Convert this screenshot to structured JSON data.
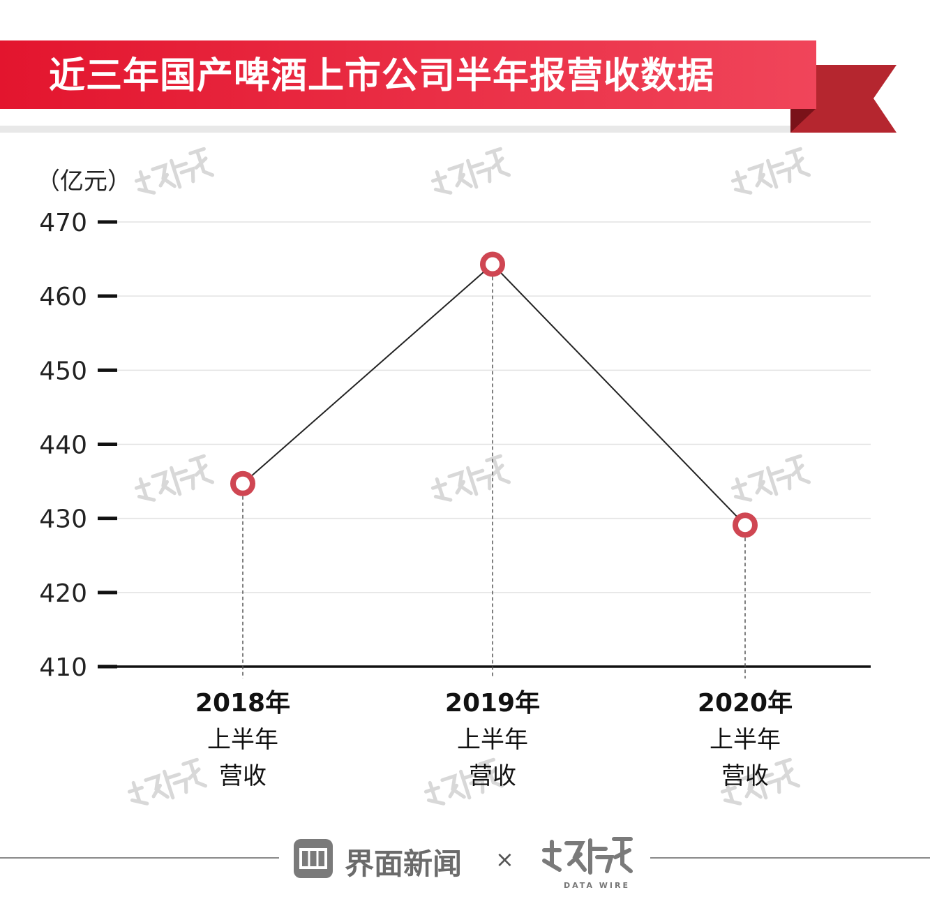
{
  "header": {
    "title": "近三年国产啤酒上市公司半年报营收数据"
  },
  "footer": {
    "brand": "界面新闻",
    "separator": "×",
    "partner_subtitle": "DATA WIRE"
  },
  "colors": {
    "banner": "#e8223a",
    "ribbon": "#b5262f",
    "marker": "#cf4652",
    "line": "#222222"
  },
  "chart_data": {
    "type": "line",
    "unit": "（亿元）",
    "y_ticks": [
      "470",
      "460",
      "450",
      "440",
      "430",
      "420",
      "410"
    ],
    "ylim": [
      410,
      470
    ],
    "grid": true,
    "categories": [
      {
        "year": "2018年",
        "l2": "上半年",
        "l3": "营收"
      },
      {
        "year": "2019年",
        "l2": "上半年",
        "l3": "营收"
      },
      {
        "year": "2020年",
        "l2": "上半年",
        "l3": "营收"
      }
    ],
    "series": [
      {
        "values": [
          434.7,
          464.3,
          429.1
        ]
      }
    ]
  }
}
